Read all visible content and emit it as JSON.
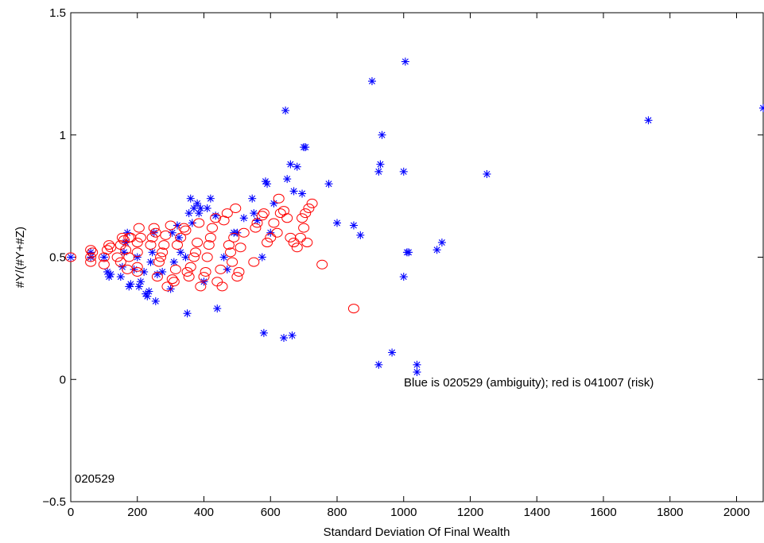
{
  "chart_data": {
    "type": "scatter",
    "title": "",
    "xlabel": "Standard Deviation Of Final Wealth",
    "ylabel": "#Y/(#Y+#Z)",
    "xlim": [
      0,
      2080
    ],
    "ylim": [
      -0.5,
      1.5
    ],
    "xticks": [
      0,
      200,
      400,
      600,
      800,
      1000,
      1200,
      1400,
      1600,
      1800,
      2000
    ],
    "yticks": [
      -0.5,
      0,
      0.5,
      1,
      1.5
    ],
    "xtick_labels": [
      "0",
      "200",
      "400",
      "600",
      "800",
      "1000",
      "1200",
      "1400",
      "1600",
      "1800",
      "2000"
    ],
    "ytick_labels": [
      "−0.5",
      "0",
      "0.5",
      "1",
      "1.5"
    ],
    "grid": false,
    "annotations": {
      "legend_text": "Blue is 020529 (ambiguity); red is 041007 (risk)",
      "corner_id": "020529"
    },
    "colors": {
      "blue": "#0000ff",
      "red": "#ff0000"
    },
    "series": [
      {
        "marker": "asterisk",
        "color": "#0000ff",
        "points": [
          [
            0,
            0.5
          ],
          [
            60,
            0.5
          ],
          [
            60,
            0.52
          ],
          [
            100,
            0.5
          ],
          [
            110,
            0.44
          ],
          [
            115,
            0.42
          ],
          [
            120,
            0.43
          ],
          [
            150,
            0.42
          ],
          [
            155,
            0.46
          ],
          [
            160,
            0.52
          ],
          [
            165,
            0.56
          ],
          [
            170,
            0.6
          ],
          [
            175,
            0.38
          ],
          [
            180,
            0.39
          ],
          [
            190,
            0.45
          ],
          [
            200,
            0.5
          ],
          [
            205,
            0.38
          ],
          [
            210,
            0.4
          ],
          [
            220,
            0.44
          ],
          [
            225,
            0.35
          ],
          [
            230,
            0.34
          ],
          [
            235,
            0.36
          ],
          [
            240,
            0.48
          ],
          [
            245,
            0.52
          ],
          [
            250,
            0.6
          ],
          [
            255,
            0.32
          ],
          [
            260,
            0.43
          ],
          [
            275,
            0.44
          ],
          [
            300,
            0.37
          ],
          [
            305,
            0.6
          ],
          [
            310,
            0.48
          ],
          [
            320,
            0.63
          ],
          [
            325,
            0.58
          ],
          [
            330,
            0.52
          ],
          [
            345,
            0.5
          ],
          [
            350,
            0.27
          ],
          [
            355,
            0.68
          ],
          [
            360,
            0.74
          ],
          [
            365,
            0.64
          ],
          [
            370,
            0.7
          ],
          [
            380,
            0.72
          ],
          [
            385,
            0.68
          ],
          [
            390,
            0.7
          ],
          [
            400,
            0.4
          ],
          [
            410,
            0.7
          ],
          [
            420,
            0.74
          ],
          [
            435,
            0.67
          ],
          [
            440,
            0.29
          ],
          [
            460,
            0.5
          ],
          [
            470,
            0.45
          ],
          [
            490,
            0.6
          ],
          [
            500,
            0.6
          ],
          [
            520,
            0.66
          ],
          [
            545,
            0.74
          ],
          [
            550,
            0.68
          ],
          [
            560,
            0.65
          ],
          [
            575,
            0.5
          ],
          [
            580,
            0.19
          ],
          [
            585,
            0.81
          ],
          [
            590,
            0.8
          ],
          [
            600,
            0.6
          ],
          [
            610,
            0.72
          ],
          [
            640,
            0.17
          ],
          [
            645,
            1.1
          ],
          [
            650,
            0.82
          ],
          [
            660,
            0.88
          ],
          [
            665,
            0.18
          ],
          [
            670,
            0.77
          ],
          [
            680,
            0.87
          ],
          [
            695,
            0.76
          ],
          [
            700,
            0.95
          ],
          [
            705,
            0.95
          ],
          [
            775,
            0.8
          ],
          [
            800,
            0.64
          ],
          [
            850,
            0.63
          ],
          [
            870,
            0.59
          ],
          [
            905,
            1.22
          ],
          [
            925,
            0.06
          ],
          [
            930,
            0.88
          ],
          [
            935,
            1.0
          ],
          [
            925,
            0.85
          ],
          [
            965,
            0.11
          ],
          [
            1000,
            0.85
          ],
          [
            1005,
            1.3
          ],
          [
            1000,
            0.42
          ],
          [
            1010,
            0.52
          ],
          [
            1015,
            0.52
          ],
          [
            1040,
            0.06
          ],
          [
            1040,
            0.03
          ],
          [
            1100,
            0.53
          ],
          [
            1115,
            0.56
          ],
          [
            1250,
            0.84
          ],
          [
            1735,
            1.06
          ],
          [
            2080,
            1.11
          ]
        ]
      },
      {
        "marker": "circle",
        "color": "#ff0000",
        "points": [
          [
            0,
            0.5
          ],
          [
            60,
            0.5
          ],
          [
            60,
            0.48
          ],
          [
            60,
            0.53
          ],
          [
            65,
            0.52
          ],
          [
            100,
            0.5
          ],
          [
            100,
            0.47
          ],
          [
            110,
            0.53
          ],
          [
            115,
            0.55
          ],
          [
            120,
            0.54
          ],
          [
            140,
            0.5
          ],
          [
            150,
            0.48
          ],
          [
            150,
            0.55
          ],
          [
            155,
            0.58
          ],
          [
            160,
            0.57
          ],
          [
            165,
            0.53
          ],
          [
            170,
            0.45
          ],
          [
            175,
            0.5
          ],
          [
            175,
            0.58
          ],
          [
            180,
            0.58
          ],
          [
            200,
            0.46
          ],
          [
            200,
            0.44
          ],
          [
            200,
            0.52
          ],
          [
            200,
            0.56
          ],
          [
            205,
            0.62
          ],
          [
            210,
            0.58
          ],
          [
            240,
            0.55
          ],
          [
            245,
            0.58
          ],
          [
            250,
            0.62
          ],
          [
            255,
            0.6
          ],
          [
            260,
            0.42
          ],
          [
            265,
            0.48
          ],
          [
            270,
            0.5
          ],
          [
            275,
            0.52
          ],
          [
            280,
            0.55
          ],
          [
            285,
            0.59
          ],
          [
            290,
            0.38
          ],
          [
            300,
            0.63
          ],
          [
            305,
            0.41
          ],
          [
            310,
            0.4
          ],
          [
            315,
            0.45
          ],
          [
            320,
            0.55
          ],
          [
            330,
            0.58
          ],
          [
            340,
            0.62
          ],
          [
            345,
            0.61
          ],
          [
            350,
            0.44
          ],
          [
            355,
            0.42
          ],
          [
            360,
            0.46
          ],
          [
            370,
            0.5
          ],
          [
            375,
            0.52
          ],
          [
            380,
            0.56
          ],
          [
            385,
            0.64
          ],
          [
            390,
            0.38
          ],
          [
            400,
            0.42
          ],
          [
            405,
            0.44
          ],
          [
            410,
            0.5
          ],
          [
            415,
            0.55
          ],
          [
            420,
            0.58
          ],
          [
            425,
            0.62
          ],
          [
            435,
            0.66
          ],
          [
            440,
            0.4
          ],
          [
            450,
            0.45
          ],
          [
            455,
            0.38
          ],
          [
            460,
            0.65
          ],
          [
            470,
            0.68
          ],
          [
            475,
            0.55
          ],
          [
            480,
            0.52
          ],
          [
            485,
            0.48
          ],
          [
            490,
            0.58
          ],
          [
            495,
            0.7
          ],
          [
            500,
            0.42
          ],
          [
            505,
            0.44
          ],
          [
            510,
            0.54
          ],
          [
            520,
            0.6
          ],
          [
            550,
            0.48
          ],
          [
            555,
            0.62
          ],
          [
            560,
            0.64
          ],
          [
            575,
            0.67
          ],
          [
            580,
            0.68
          ],
          [
            590,
            0.56
          ],
          [
            600,
            0.58
          ],
          [
            610,
            0.64
          ],
          [
            620,
            0.6
          ],
          [
            625,
            0.74
          ],
          [
            630,
            0.68
          ],
          [
            640,
            0.69
          ],
          [
            650,
            0.66
          ],
          [
            660,
            0.58
          ],
          [
            670,
            0.56
          ],
          [
            680,
            0.54
          ],
          [
            690,
            0.58
          ],
          [
            695,
            0.66
          ],
          [
            700,
            0.62
          ],
          [
            705,
            0.68
          ],
          [
            710,
            0.56
          ],
          [
            715,
            0.7
          ],
          [
            725,
            0.72
          ],
          [
            755,
            0.47
          ],
          [
            850,
            0.29
          ]
        ]
      }
    ]
  }
}
